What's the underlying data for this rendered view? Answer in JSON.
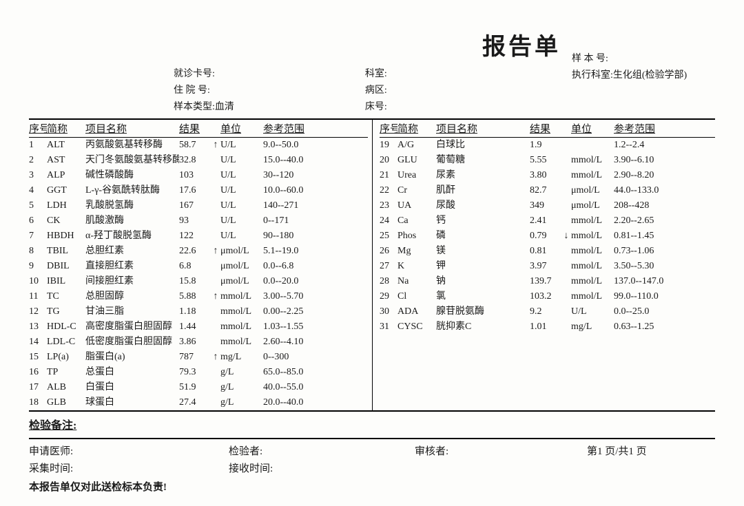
{
  "title": "报告单",
  "header": {
    "card_no_label": "就诊卡号:",
    "inpatient_no_label": "住 院 号:",
    "sample_type_label": "样本类型:",
    "sample_type_value": "血清",
    "dept_label": "科室:",
    "ward_label": "病区:",
    "bed_label": "床号:",
    "sample_no_label": "样 本 号:",
    "exec_dept_label": "执行科室:",
    "exec_dept_value": "生化组(检验学部)"
  },
  "columns": {
    "idx": "序号",
    "abbr": "简称",
    "name": "项目名称",
    "result": "结果",
    "unit": "单位",
    "ref": "参考范围"
  },
  "rows_left": [
    {
      "idx": "1",
      "abbr": "ALT",
      "name": "丙氨酸氨基转移酶",
      "res": "58.7",
      "flag": "↑",
      "unit": "U/L",
      "ref": "9.0--50.0"
    },
    {
      "idx": "2",
      "abbr": "AST",
      "name": "天门冬氨酸氨基转移酶",
      "res": "32.8",
      "flag": "",
      "unit": "U/L",
      "ref": "15.0--40.0"
    },
    {
      "idx": "3",
      "abbr": "ALP",
      "name": "碱性磷酸酶",
      "res": "103",
      "flag": "",
      "unit": "U/L",
      "ref": "30--120"
    },
    {
      "idx": "4",
      "abbr": "GGT",
      "name": "L-γ-谷氨酰转肽酶",
      "res": "17.6",
      "flag": "",
      "unit": "U/L",
      "ref": "10.0--60.0"
    },
    {
      "idx": "5",
      "abbr": "LDH",
      "name": "乳酸脱氢酶",
      "res": "167",
      "flag": "",
      "unit": "U/L",
      "ref": "140--271"
    },
    {
      "idx": "6",
      "abbr": "CK",
      "name": "肌酸激酶",
      "res": "93",
      "flag": "",
      "unit": "U/L",
      "ref": "0--171"
    },
    {
      "idx": "7",
      "abbr": "HBDH",
      "name": "α-羟丁酸脱氢酶",
      "res": "122",
      "flag": "",
      "unit": "U/L",
      "ref": "90--180"
    },
    {
      "idx": "8",
      "abbr": "TBIL",
      "name": "总胆红素",
      "res": "22.6",
      "flag": "↑",
      "unit": "μmol/L",
      "ref": "5.1--19.0"
    },
    {
      "idx": "9",
      "abbr": "DBIL",
      "name": "直接胆红素",
      "res": "6.8",
      "flag": "",
      "unit": "μmol/L",
      "ref": "0.0--6.8"
    },
    {
      "idx": "10",
      "abbr": "IBIL",
      "name": "间接胆红素",
      "res": "15.8",
      "flag": "",
      "unit": "μmol/L",
      "ref": "0.0--20.0"
    },
    {
      "idx": "11",
      "abbr": "TC",
      "name": "总胆固醇",
      "res": "5.88",
      "flag": "↑",
      "unit": "mmol/L",
      "ref": "3.00--5.70"
    },
    {
      "idx": "12",
      "abbr": "TG",
      "name": "甘油三脂",
      "res": "1.18",
      "flag": "",
      "unit": "mmol/L",
      "ref": "0.00--2.25"
    },
    {
      "idx": "13",
      "abbr": "HDL-C",
      "name": "高密度脂蛋白胆固醇",
      "res": "1.44",
      "flag": "",
      "unit": "mmol/L",
      "ref": "1.03--1.55"
    },
    {
      "idx": "14",
      "abbr": "LDL-C",
      "name": "低密度脂蛋白胆固醇",
      "res": "3.86",
      "flag": "",
      "unit": "mmol/L",
      "ref": "2.60--4.10"
    },
    {
      "idx": "15",
      "abbr": "LP(a)",
      "name": "脂蛋白(a)",
      "res": "787",
      "flag": "↑",
      "unit": "mg/L",
      "ref": "0--300"
    },
    {
      "idx": "16",
      "abbr": "TP",
      "name": "总蛋白",
      "res": "79.3",
      "flag": "",
      "unit": "g/L",
      "ref": "65.0--85.0"
    },
    {
      "idx": "17",
      "abbr": "ALB",
      "name": "白蛋白",
      "res": "51.9",
      "flag": "",
      "unit": "g/L",
      "ref": "40.0--55.0"
    },
    {
      "idx": "18",
      "abbr": "GLB",
      "name": "球蛋白",
      "res": "27.4",
      "flag": "",
      "unit": "g/L",
      "ref": "20.0--40.0"
    }
  ],
  "rows_right": [
    {
      "idx": "19",
      "abbr": "A/G",
      "name": "白球比",
      "res": "1.9",
      "flag": "",
      "unit": "",
      "ref": "1.2--2.4"
    },
    {
      "idx": "20",
      "abbr": "GLU",
      "name": "葡萄糖",
      "res": "5.55",
      "flag": "",
      "unit": "mmol/L",
      "ref": "3.90--6.10"
    },
    {
      "idx": "21",
      "abbr": "Urea",
      "name": "尿素",
      "res": "3.80",
      "flag": "",
      "unit": "mmol/L",
      "ref": "2.90--8.20"
    },
    {
      "idx": "22",
      "abbr": "Cr",
      "name": "肌酐",
      "res": "82.7",
      "flag": "",
      "unit": "μmol/L",
      "ref": "44.0--133.0"
    },
    {
      "idx": "23",
      "abbr": "UA",
      "name": "尿酸",
      "res": "349",
      "flag": "",
      "unit": "μmol/L",
      "ref": "208--428"
    },
    {
      "idx": "24",
      "abbr": "Ca",
      "name": "钙",
      "res": "2.41",
      "flag": "",
      "unit": "mmol/L",
      "ref": "2.20--2.65"
    },
    {
      "idx": "25",
      "abbr": "Phos",
      "name": "磷",
      "res": "0.79",
      "flag": "↓",
      "unit": "mmol/L",
      "ref": "0.81--1.45"
    },
    {
      "idx": "26",
      "abbr": "Mg",
      "name": "镁",
      "res": "0.81",
      "flag": "",
      "unit": "mmol/L",
      "ref": "0.73--1.06"
    },
    {
      "idx": "27",
      "abbr": "K",
      "name": "钾",
      "res": "3.97",
      "flag": "",
      "unit": "mmol/L",
      "ref": "3.50--5.30"
    },
    {
      "idx": "28",
      "abbr": "Na",
      "name": "钠",
      "res": "139.7",
      "flag": "",
      "unit": "mmol/L",
      "ref": "137.0--147.0"
    },
    {
      "idx": "29",
      "abbr": "Cl",
      "name": "氯",
      "res": "103.2",
      "flag": "",
      "unit": "mmol/L",
      "ref": "99.0--110.0"
    },
    {
      "idx": "30",
      "abbr": "ADA",
      "name": "腺苷脱氨酶",
      "res": "9.2",
      "flag": "",
      "unit": "U/L",
      "ref": "0.0--25.0"
    },
    {
      "idx": "31",
      "abbr": "CYSC",
      "name": "胱抑素C",
      "res": "1.01",
      "flag": "",
      "unit": "mg/L",
      "ref": "0.63--1.25"
    }
  ],
  "notes_label": "检验备注:",
  "footer": {
    "req_doc": "申请医师:",
    "tester": "检验者:",
    "reviewer": "审核者:",
    "page": "第1 页/共1 页",
    "collect_time": "采集时间:",
    "recv_time": "接收时间:"
  },
  "disclaimer": "本报告单仅对此送检标本负责!"
}
